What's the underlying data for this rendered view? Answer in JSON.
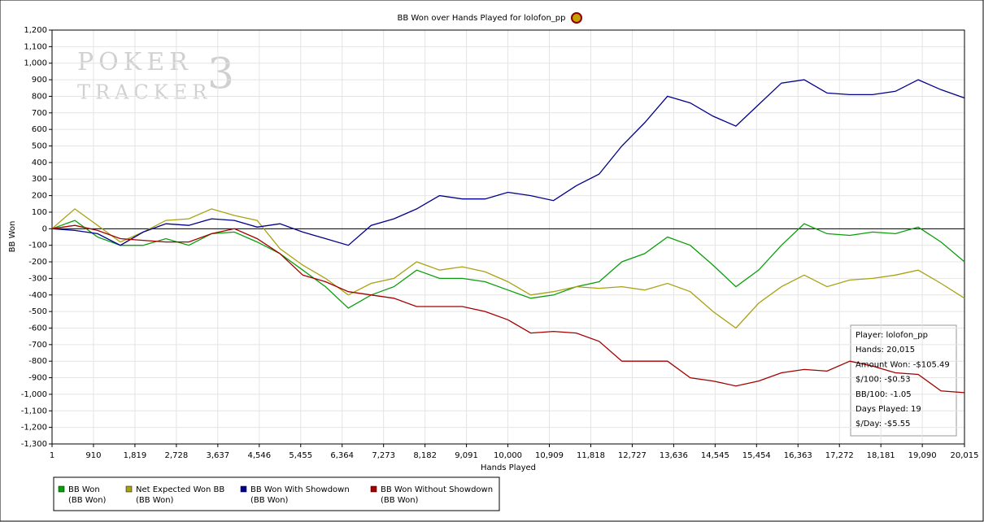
{
  "chart_data": {
    "type": "line",
    "title": "BB Won over Hands Played for lolofon_pp",
    "watermark": {
      "line1": "POKER",
      "line2": "TRACKER",
      "mark": "3"
    },
    "x_label": "Hands Played",
    "y_label": "BB Won",
    "xlim": [
      1,
      20015
    ],
    "ylim": [
      -1300,
      1200
    ],
    "xticks": [
      1,
      910,
      {
        "value": 1819,
        "label": "1,819"
      },
      {
        "value": 2728,
        "label": "2,728"
      },
      {
        "value": 3637,
        "label": "3,637"
      },
      {
        "value": 4546,
        "label": "4,546"
      },
      {
        "value": 5455,
        "label": "5,455"
      },
      {
        "value": 6364,
        "label": "6,364"
      },
      {
        "value": 7273,
        "label": "7,273"
      },
      {
        "value": 8182,
        "label": "8,182"
      },
      {
        "value": 9091,
        "label": "9,091"
      },
      {
        "value": 10000,
        "label": "10,000"
      },
      {
        "value": 10909,
        "label": "10,909"
      },
      {
        "value": 11818,
        "label": "11,818"
      },
      {
        "value": 12727,
        "label": "12,727"
      },
      {
        "value": 13636,
        "label": "13,636"
      },
      {
        "value": 14545,
        "label": "14,545"
      },
      {
        "value": 15454,
        "label": "15,454"
      },
      {
        "value": 16363,
        "label": "16,363"
      },
      {
        "value": 17272,
        "label": "17,272"
      },
      {
        "value": 18181,
        "label": "18,181"
      },
      {
        "value": 19090,
        "label": "19,090"
      },
      {
        "value": 20015,
        "label": "20,015"
      }
    ],
    "yticks": [
      {
        "value": 1200,
        "label": "1,200"
      },
      {
        "value": 1100,
        "label": "1,100"
      },
      {
        "value": 1000,
        "label": "1,000"
      },
      900,
      800,
      700,
      600,
      500,
      400,
      300,
      200,
      100,
      0,
      -100,
      -200,
      -300,
      -400,
      -500,
      -600,
      -700,
      -800,
      -900,
      {
        "value": -1000,
        "label": "-1,000"
      },
      {
        "value": -1100,
        "label": "-1,100"
      },
      {
        "value": -1200,
        "label": "-1,200"
      },
      {
        "value": -1300,
        "label": "-1,300"
      }
    ],
    "grid": true,
    "x": [
      1,
      500,
      1000,
      1500,
      2000,
      2500,
      3000,
      3500,
      4000,
      4500,
      5000,
      5500,
      6000,
      6500,
      7000,
      7500,
      8000,
      8500,
      9000,
      9500,
      10000,
      10500,
      11000,
      11500,
      12000,
      12500,
      13000,
      13500,
      14000,
      14500,
      15000,
      15500,
      16000,
      16500,
      17000,
      17500,
      18000,
      18500,
      19000,
      19500,
      20015
    ],
    "series": [
      {
        "name": "BB Won",
        "unit": "(BB Won)",
        "color": "#0a9e0a",
        "values": [
          0,
          50,
          -50,
          -100,
          -100,
          -60,
          -100,
          -30,
          -20,
          -80,
          -150,
          -250,
          -350,
          -480,
          -400,
          -350,
          -250,
          -300,
          -300,
          -320,
          -370,
          -420,
          -400,
          -350,
          -320,
          -200,
          -150,
          -50,
          -100,
          -220,
          -350,
          -250,
          -100,
          30,
          -30,
          -40,
          -20,
          -30,
          10,
          -80,
          -200
        ]
      },
      {
        "name": "Net Expected Won BB",
        "unit": "(BB Won)",
        "color": "#a8a212",
        "values": [
          0,
          120,
          20,
          -80,
          -20,
          50,
          60,
          120,
          80,
          50,
          -120,
          -220,
          -300,
          -400,
          -330,
          -300,
          -200,
          -250,
          -230,
          -260,
          -320,
          -400,
          -380,
          -350,
          -360,
          -350,
          -370,
          -330,
          -380,
          -500,
          -600,
          -450,
          -350,
          -280,
          -350,
          -310,
          -300,
          -280,
          -250,
          -330,
          -420
        ]
      },
      {
        "name": "BB Won With Showdown",
        "unit": "(BB Won)",
        "color": "#00008b",
        "values": [
          0,
          -10,
          -30,
          -100,
          -20,
          30,
          20,
          60,
          50,
          10,
          30,
          -20,
          -60,
          -100,
          20,
          60,
          120,
          200,
          180,
          180,
          220,
          200,
          170,
          260,
          330,
          500,
          640,
          800,
          760,
          680,
          620,
          750,
          880,
          900,
          820,
          810,
          810,
          830,
          900,
          840,
          790
        ]
      },
      {
        "name": "BB Won Without Showdown",
        "unit": "(BB Won)",
        "color": "#a30000",
        "values": [
          0,
          20,
          -10,
          -60,
          -70,
          -80,
          -80,
          -30,
          0,
          -60,
          -150,
          -280,
          -320,
          -380,
          -400,
          -420,
          -470,
          -470,
          -470,
          -500,
          -550,
          -630,
          -620,
          -630,
          -680,
          -800,
          -800,
          -800,
          -900,
          -920,
          -950,
          -920,
          -870,
          -850,
          -860,
          -800,
          -830,
          -870,
          -880,
          -980,
          -990
        ]
      }
    ],
    "stats_box": [
      "Player: lolofon_pp",
      "Hands: 20,015",
      "Amount Won: -$105.49",
      "$/100: -$0.53",
      "BB/100: -1.05",
      "Days Played: 19",
      "$/Day: -$5.55"
    ]
  }
}
